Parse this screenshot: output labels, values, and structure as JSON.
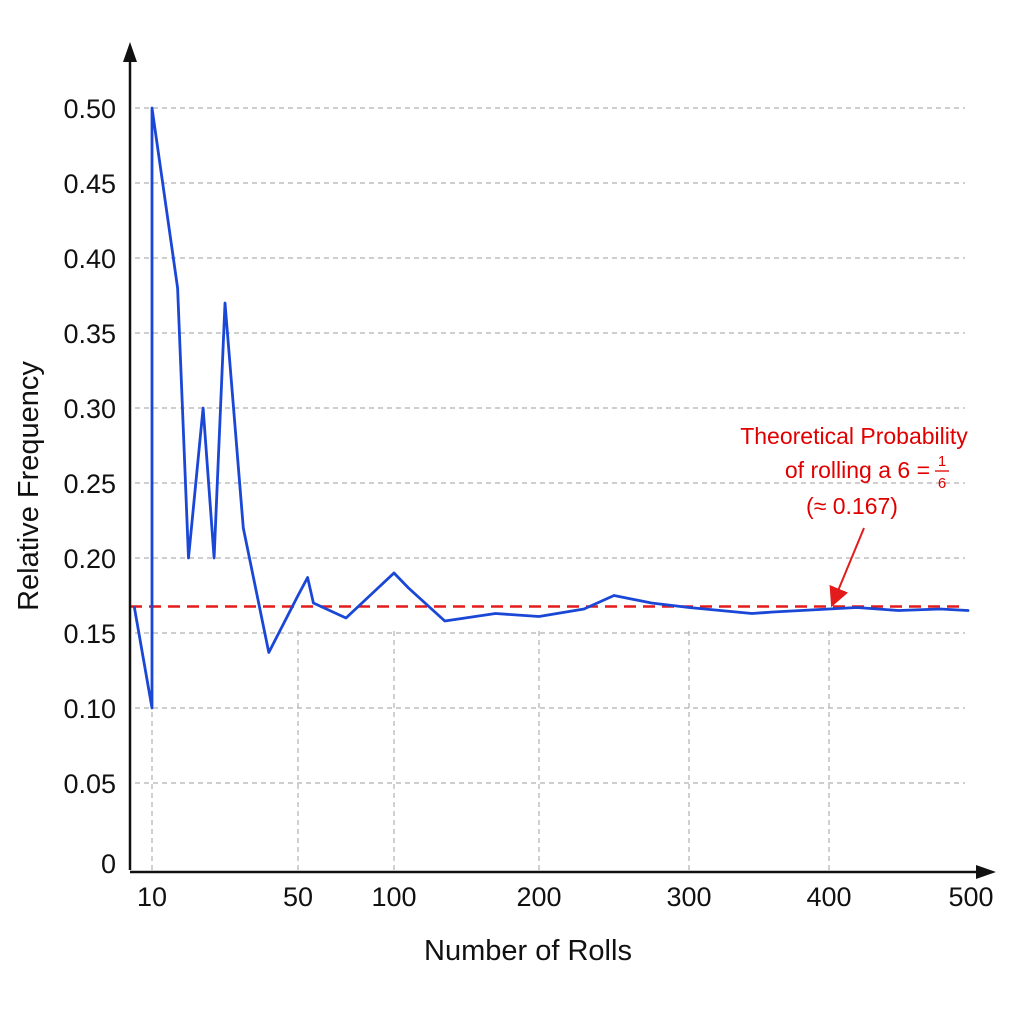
{
  "chart_data": {
    "type": "line",
    "xlabel": "Number of Rolls",
    "ylabel": "Relative Frequency",
    "x_ticks": [
      {
        "value": 10,
        "label": "10"
      },
      {
        "value": 50,
        "label": "50"
      },
      {
        "value": 100,
        "label": "100"
      },
      {
        "value": 200,
        "label": "200"
      },
      {
        "value": 300,
        "label": "300"
      },
      {
        "value": 400,
        "label": "400"
      },
      {
        "value": 500,
        "label": "500"
      }
    ],
    "y_ticks": [
      {
        "value": 0,
        "label": "0"
      },
      {
        "value": 0.05,
        "label": "0.05"
      },
      {
        "value": 0.1,
        "label": "0.10"
      },
      {
        "value": 0.15,
        "label": "0.15"
      },
      {
        "value": 0.2,
        "label": "0.20"
      },
      {
        "value": 0.25,
        "label": "0.25"
      },
      {
        "value": 0.3,
        "label": "0.30"
      },
      {
        "value": 0.35,
        "label": "0.35"
      },
      {
        "value": 0.4,
        "label": "0.40"
      },
      {
        "value": 0.45,
        "label": "0.45"
      },
      {
        "value": 0.5,
        "label": "0.50"
      }
    ],
    "ylim": [
      0,
      0.55
    ],
    "grid": "dashed",
    "colors": {
      "series": "#1a47d6",
      "reference": "#e31b1b",
      "grid": "#b0b0b0",
      "axis": "#111111"
    },
    "series": [
      {
        "x": [
          2,
          10,
          10,
          17,
          20,
          24,
          27,
          30,
          35,
          42,
          50,
          55,
          58,
          75,
          100,
          110,
          135,
          170,
          200,
          230,
          250,
          275,
          300,
          345,
          360,
          400,
          420,
          450,
          480,
          500
        ],
        "y": [
          0.167,
          0.1,
          0.5,
          0.38,
          0.2,
          0.3,
          0.2,
          0.37,
          0.22,
          0.137,
          0.175,
          0.187,
          0.17,
          0.16,
          0.19,
          0.18,
          0.158,
          0.163,
          0.161,
          0.166,
          0.175,
          0.17,
          0.167,
          0.163,
          0.164,
          0.166,
          0.167,
          0.165,
          0.166,
          0.165
        ]
      }
    ],
    "reference_line": {
      "value": 0.167,
      "style": "dashed",
      "annotation": {
        "line1": "Theoretical Probability",
        "line2_prefix": "of rolling a 6 = ",
        "fraction_num": "1",
        "fraction_den": "6",
        "line3": "(≈ 0.167)"
      }
    }
  }
}
